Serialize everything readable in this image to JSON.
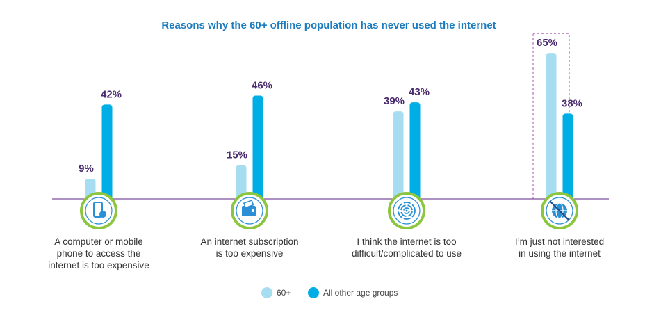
{
  "chart_data": {
    "type": "bar",
    "title": "Reasons why the 60+ offline population has never used the internet",
    "categories": [
      "A computer or mobile phone to access the internet is too expensive",
      "An internet subscription is too expensive",
      "I think the internet is too difficult/complicated to use",
      "I'm just not interested in using the internet"
    ],
    "category_lines": [
      [
        "A computer or mobile",
        "phone to access the",
        "internet is too expensive"
      ],
      [
        "An internet subscription",
        "is too expensive"
      ],
      [
        "I think the internet is too",
        "difficult/complicated to use"
      ],
      [
        "I’m just not interested",
        "in using the internet"
      ]
    ],
    "category_icons": [
      "mobile-phone-icon",
      "wallet-icon",
      "maze-icon",
      "no-internet-icon"
    ],
    "series": [
      {
        "name": "60+",
        "values": [
          9,
          15,
          39,
          65
        ],
        "labels": [
          "9%",
          "15%",
          "39%",
          "65%"
        ]
      },
      {
        "name": "All other age groups",
        "values": [
          42,
          46,
          43,
          38
        ],
        "labels": [
          "42%",
          "46%",
          "43%",
          "38%"
        ]
      }
    ],
    "ylim": [
      0,
      70
    ],
    "highlighted_category": 3,
    "legend_position": "bottom-center",
    "colors": {
      "title": "#1a7bbf",
      "series_60_plus": "#a6ddf0",
      "series_other": "#00aee6",
      "value_label": "#4a2a6e",
      "axis_line": "#7b4f9e",
      "icon_ring": "#8cc63f",
      "icon_fill": "#2a8fd4",
      "highlight_box": "#a14fa6",
      "category_text": "#333333",
      "legend_text": "#444444"
    }
  }
}
